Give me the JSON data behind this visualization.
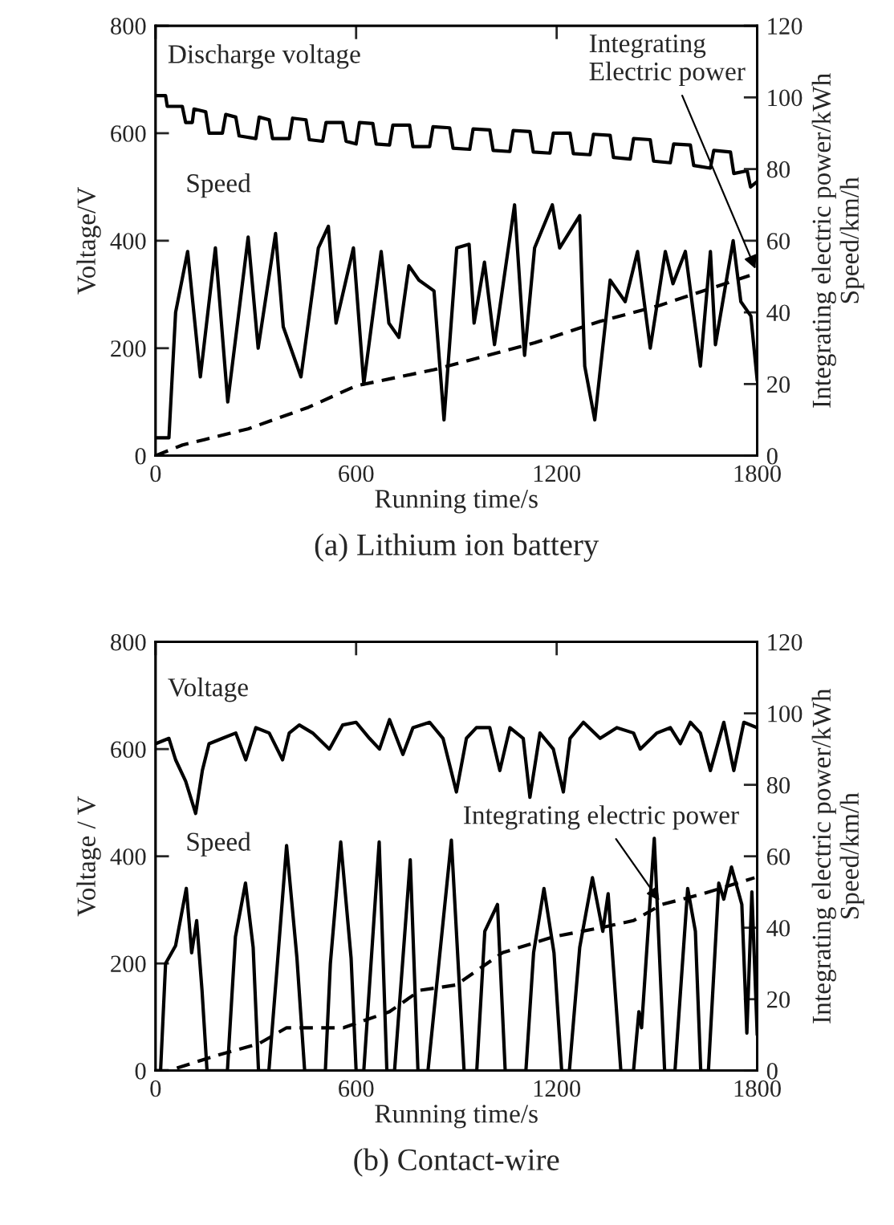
{
  "chart_data": [
    {
      "type": "line",
      "title": "(a) Lithium ion battery",
      "xlabel": "Running time/s",
      "ylabel": "Voltage/V",
      "y2label": "Integrating electric power/kWh\nSpeed/km/h",
      "xlim": [
        0,
        1800
      ],
      "xticks": [
        0,
        600,
        1200,
        1800
      ],
      "ylim": [
        0,
        800
      ],
      "yticks": [
        0,
        200,
        400,
        600,
        800
      ],
      "y2lim": [
        0,
        120
      ],
      "y2ticks": [
        0,
        20,
        40,
        60,
        80,
        100,
        120
      ],
      "grid": false,
      "legend": false,
      "series": [
        {
          "name": "Discharge voltage",
          "color": "#000000",
          "line_style": "solid",
          "x": [
            0,
            30,
            35,
            80,
            90,
            110,
            115,
            150,
            160,
            200,
            210,
            240,
            250,
            300,
            310,
            340,
            350,
            400,
            410,
            450,
            460,
            500,
            510,
            560,
            570,
            600,
            610,
            650,
            660,
            700,
            710,
            760,
            770,
            820,
            830,
            880,
            890,
            940,
            950,
            1000,
            1010,
            1060,
            1070,
            1120,
            1130,
            1180,
            1190,
            1240,
            1250,
            1300,
            1310,
            1360,
            1370,
            1420,
            1430,
            1480,
            1490,
            1540,
            1550,
            1600,
            1610,
            1660,
            1670,
            1720,
            1730,
            1770,
            1780,
            1800
          ],
          "values": [
            670,
            670,
            650,
            650,
            620,
            620,
            645,
            640,
            600,
            600,
            635,
            630,
            595,
            590,
            630,
            625,
            590,
            590,
            628,
            625,
            588,
            585,
            620,
            620,
            585,
            580,
            620,
            618,
            580,
            578,
            615,
            615,
            575,
            575,
            612,
            610,
            572,
            570,
            608,
            606,
            568,
            566,
            605,
            603,
            565,
            563,
            600,
            600,
            562,
            560,
            598,
            596,
            555,
            552,
            590,
            588,
            548,
            545,
            580,
            578,
            540,
            535,
            568,
            565,
            525,
            530,
            500,
            510
          ]
        },
        {
          "name": "Speed",
          "color": "#000000",
          "line_style": "solid",
          "axis": "y2",
          "x": [
            0,
            40,
            60,
            96,
            134,
            179,
            216,
            277,
            307,
            359,
            382,
            435,
            487,
            517,
            540,
            592,
            623,
            675,
            698,
            728,
            758,
            788,
            833,
            863,
            901,
            938,
            953,
            984,
            1014,
            1074,
            1104,
            1134,
            1187,
            1209,
            1269,
            1284,
            1314,
            1360,
            1405,
            1442,
            1480,
            1525,
            1548,
            1585,
            1630,
            1660,
            1675,
            1728,
            1751,
            1781,
            1800
          ],
          "values": [
            5,
            5,
            40,
            57,
            22,
            58,
            15,
            61,
            30,
            62,
            36,
            22,
            58,
            64,
            37,
            58,
            20,
            57,
            37,
            33,
            53,
            49,
            46,
            10,
            58,
            59,
            37,
            54,
            31,
            70,
            28,
            58,
            70,
            58,
            67,
            25,
            10,
            49,
            43,
            57,
            30,
            57,
            48,
            57,
            25,
            57,
            31,
            60,
            43,
            39,
            21
          ]
        },
        {
          "name": "Integrating\nElectric power",
          "color": "#000000",
          "line_style": "dashed",
          "axis": "y2",
          "x": [
            0,
            81,
            277,
            457,
            600,
            833,
            1134,
            1330,
            1510,
            1800
          ],
          "values": [
            0,
            3,
            7.5,
            13.5,
            19.5,
            24,
            31.5,
            37.5,
            42,
            51
          ]
        }
      ]
    },
    {
      "type": "line",
      "title": "(b) Contact-wire",
      "xlabel": "Running time/s",
      "ylabel": "Voltage / V",
      "y2label": "Integrating electric power/kWh\nSpeed/km/h",
      "xlim": [
        0,
        1800
      ],
      "xticks": [
        0,
        600,
        1200,
        1800
      ],
      "ylim": [
        0,
        800
      ],
      "yticks": [
        0,
        200,
        400,
        600,
        800
      ],
      "y2lim": [
        0,
        120
      ],
      "y2ticks": [
        0,
        20,
        40,
        60,
        80,
        100,
        120
      ],
      "grid": false,
      "legend": false,
      "series": [
        {
          "name": "Voltage",
          "color": "#000000",
          "line_style": "solid",
          "x": [
            0,
            40,
            60,
            90,
            120,
            140,
            160,
            200,
            240,
            270,
            300,
            340,
            380,
            400,
            430,
            470,
            520,
            560,
            600,
            640,
            670,
            700,
            740,
            770,
            820,
            860,
            900,
            930,
            960,
            1000,
            1030,
            1060,
            1100,
            1120,
            1150,
            1190,
            1220,
            1240,
            1280,
            1330,
            1380,
            1430,
            1450,
            1500,
            1540,
            1570,
            1600,
            1630,
            1660,
            1700,
            1730,
            1760,
            1800
          ],
          "values": [
            610,
            620,
            580,
            540,
            480,
            560,
            610,
            620,
            630,
            580,
            640,
            630,
            580,
            630,
            645,
            630,
            600,
            645,
            650,
            620,
            600,
            655,
            590,
            640,
            650,
            620,
            520,
            620,
            640,
            640,
            560,
            640,
            620,
            510,
            630,
            600,
            520,
            620,
            650,
            620,
            640,
            630,
            600,
            630,
            640,
            610,
            650,
            630,
            560,
            650,
            560,
            650,
            640
          ]
        },
        {
          "name": "Speed",
          "color": "#000000",
          "line_style": "solid",
          "axis": "y2",
          "x": [
            0,
            15,
            30,
            60,
            92,
            108,
            123,
            139,
            154,
            215,
            239,
            269,
            292,
            308,
            339,
            362,
            392,
            423,
            446,
            508,
            523,
            554,
            585,
            600,
            623,
            669,
            692,
            715,
            762,
            785,
            815,
            885,
            923,
            961,
            985,
            1023,
            1046,
            1108,
            1131,
            1162,
            1192,
            1215,
            1238,
            1269,
            1307,
            1338,
            1354,
            1392,
            1430,
            1446,
            1454,
            1492,
            1523,
            1554,
            1592,
            1615,
            1631,
            1654,
            1685,
            1700,
            1723,
            1754,
            1769,
            1784,
            1800
          ],
          "values": [
            0,
            0,
            30,
            35,
            51,
            33,
            42,
            22.5,
            0,
            0,
            37.5,
            52.5,
            34.5,
            0,
            0,
            27,
            63,
            31.5,
            0,
            0,
            30,
            64,
            31.5,
            0,
            0,
            64,
            0,
            0,
            59,
            0,
            0,
            64.5,
            0,
            0,
            39,
            46.5,
            0,
            0,
            33,
            51,
            33,
            0,
            0,
            34.5,
            54,
            39,
            49.5,
            0,
            0,
            16.5,
            12,
            65,
            0,
            0,
            51,
            39,
            0,
            0,
            52.5,
            48,
            57,
            46.5,
            10.5,
            50,
            10
          ]
        },
        {
          "name": "Integrating electric power",
          "color": "#000000",
          "line_style": "dashed",
          "axis": "y2",
          "x": [
            0,
            39,
            192,
            308,
            392,
            562,
            700,
            792,
            900,
            1038,
            1192,
            1331,
            1430,
            1515,
            1638,
            1792
          ],
          "values": [
            0,
            0,
            4.5,
            7.5,
            12,
            12,
            16.5,
            22.5,
            24,
            33,
            37.5,
            40,
            42,
            46.5,
            49.5,
            54
          ]
        }
      ]
    }
  ]
}
